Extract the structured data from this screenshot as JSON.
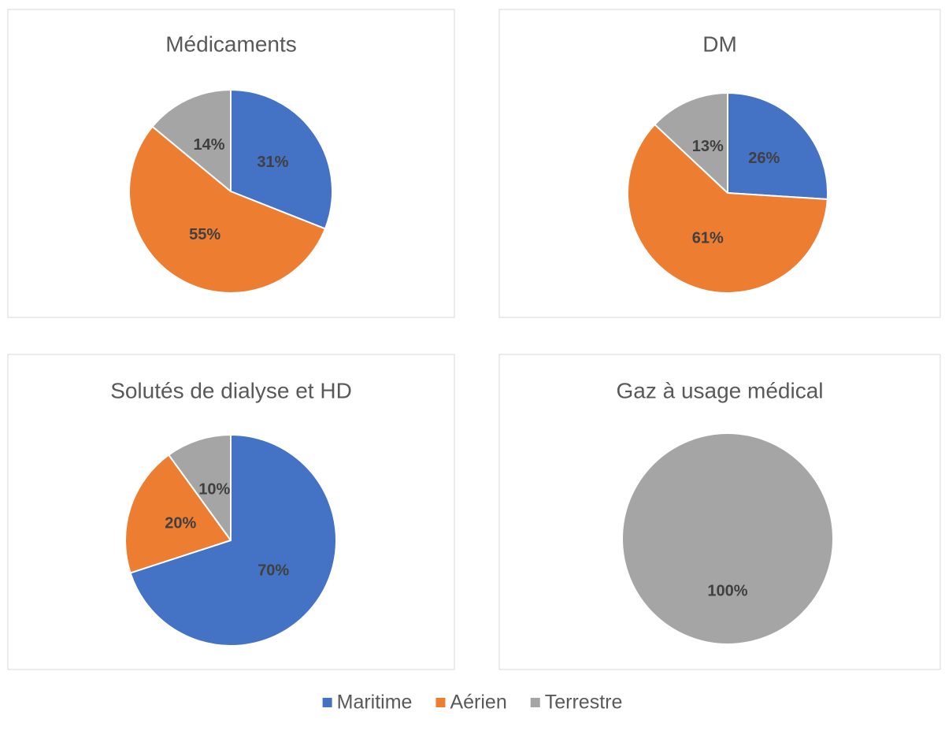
{
  "legend": {
    "labels": [
      "Maritime",
      "Aérien",
      "Terrestre"
    ],
    "colors": [
      "#4472c4",
      "#ed7d31",
      "#a5a5a5"
    ]
  },
  "chart_data": [
    {
      "type": "pie",
      "title": "Médicaments",
      "values": [
        31,
        55,
        14
      ],
      "value_labels": [
        "31%",
        "55%",
        "14%"
      ]
    },
    {
      "type": "pie",
      "title": "DM",
      "values": [
        26,
        61,
        13
      ],
      "value_labels": [
        "26%",
        "61%",
        "13%"
      ]
    },
    {
      "type": "pie",
      "title": "Solutés de dialyse et HD",
      "values": [
        70,
        20,
        10
      ],
      "value_labels": [
        "70%",
        "20%",
        "10%"
      ]
    },
    {
      "type": "pie",
      "title": "Gaz à usage médical",
      "values": [
        0,
        0,
        100
      ],
      "value_labels": [
        null,
        null,
        "100%"
      ]
    }
  ]
}
